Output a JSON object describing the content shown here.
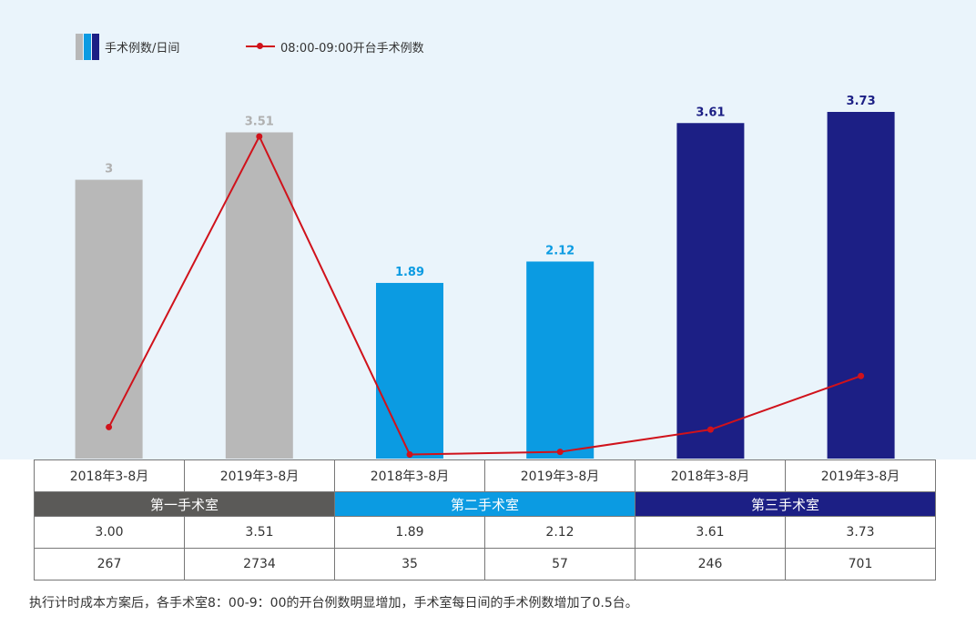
{
  "legend": {
    "bar_label": "手术例数/日间",
    "line_label": "08:00-09:00开台手术例数"
  },
  "colors": {
    "room1": "#b8b8b8",
    "room2": "#0b9be2",
    "room3": "#1c1f85",
    "line": "#d0121b",
    "room1_header": "#5b5a58",
    "room2_header": "#0b9be2",
    "room3_header": "#1c1f85",
    "room1_label": "#b0b0b0"
  },
  "chart_data": {
    "type": "bar",
    "categories": [
      "2018年3-8月",
      "2019年3-8月",
      "2018年3-8月",
      "2019年3-8月",
      "2018年3-8月",
      "2019年3-8月"
    ],
    "series": [
      {
        "name": "手术例数/日间",
        "values": [
          3,
          3.51,
          1.89,
          2.12,
          3.61,
          3.73
        ],
        "labels": [
          "3",
          "3.51",
          "1.89",
          "2.12",
          "3.61",
          "3.73"
        ]
      },
      {
        "name": "08:00-09:00开台手术例数",
        "type": "line",
        "values": [
          267,
          2734,
          35,
          57,
          246,
          701
        ]
      }
    ],
    "groups": [
      "第一手术室",
      "第二手术室",
      "第三手术室"
    ],
    "ylim": [
      0,
      3.73
    ],
    "line_ylim": [
      0,
      2734
    ],
    "grid": false,
    "legend": "top-left"
  },
  "table": {
    "periods": [
      "2018年3-8月",
      "2019年3-8月",
      "2018年3-8月",
      "2019年3-8月",
      "2018年3-8月",
      "2019年3-8月"
    ],
    "rooms": [
      "第一手术室",
      "第二手术室",
      "第三手术室"
    ],
    "row1": [
      "3.00",
      "3.51",
      "1.89",
      "2.12",
      "3.61",
      "3.73"
    ],
    "row2": [
      "267",
      "2734",
      "35",
      "57",
      "246",
      "701"
    ]
  },
  "footnote": "执行计时成本方案后，各手术室8：00-9：00的开台例数明显增加，手术室每日间的手术例数增加了0.5台。"
}
